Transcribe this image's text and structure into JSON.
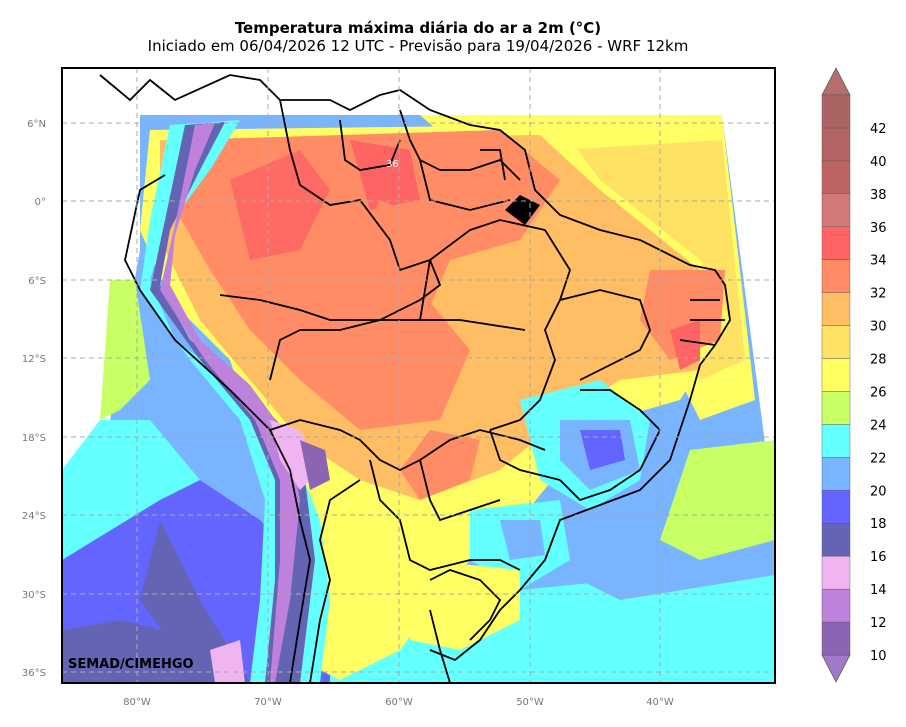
{
  "header": {
    "title": "Temperatura máxima diária do ar a 2m (°C)",
    "subtitle": "Iniciado em 06/04/2026 12 UTC - Previsão para 19/04/2026 - WRF 12km"
  },
  "map": {
    "watermark": "SEMAD/CIMEHGO",
    "contour_label": "36",
    "lat_labels": [
      "6°N",
      "0°",
      "6°S",
      "12°S",
      "18°S",
      "24°S",
      "30°S",
      "36°S"
    ],
    "lon_labels": [
      "80°W",
      "70°W",
      "60°W",
      "50°W",
      "40°W"
    ]
  },
  "colorbar": {
    "labels": [
      "10",
      "12",
      "14",
      "16",
      "18",
      "20",
      "22",
      "24",
      "26",
      "28",
      "30",
      "32",
      "34",
      "36",
      "38",
      "40",
      "42"
    ],
    "colors": [
      "#8c64b4",
      "#be82dc",
      "#f0b4f0",
      "#6464b4",
      "#6464ff",
      "#78b4ff",
      "#64ffff",
      "#c8ff64",
      "#ffff64",
      "#ffe164",
      "#ffbe64",
      "#ff8c64",
      "#ff6464",
      "#d27878",
      "#be6464",
      "#b46464",
      "#aa6464"
    ],
    "under_color": "#a07ac8",
    "over_color": "#b46e6e"
  }
}
